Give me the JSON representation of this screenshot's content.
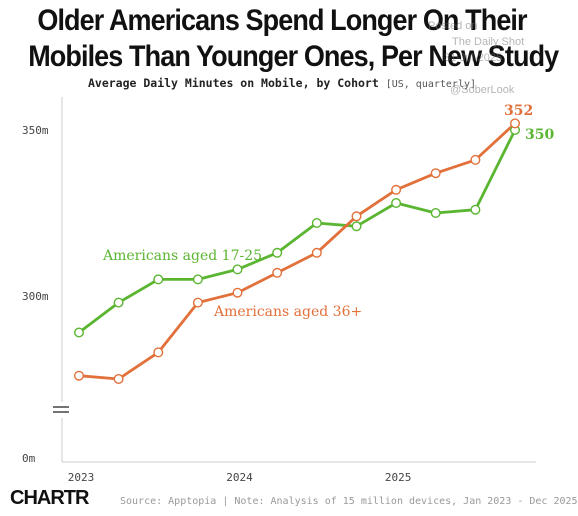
{
  "title_line1": "Older Americans Spend Longer On Their",
  "title_line2": "Mobiles Than Younger Ones, Per New Study",
  "subtitle_main": "Average Daily Minutes on Mobile, by Cohort",
  "subtitle_tag": "[US, quarterly]",
  "watermarks": {
    "posted_on": "Posted on",
    "publisher": "The Daily Shot",
    "date": "31-Jul-2025",
    "handle": "@SoberLook"
  },
  "logo": "CHARTR",
  "source": "Source: Apptopia | Note: Analysis of 15 million devices, Jan 2023 - Dec 2025",
  "colors": {
    "green": "#5ab531",
    "orange": "#e2703a",
    "axis": "#cccccc"
  },
  "chart_data": {
    "type": "line",
    "x": [
      "2023-Q1",
      "2023-Q2",
      "2023-Q3",
      "2023-Q4",
      "2024-Q1",
      "2024-Q2",
      "2024-Q3",
      "2024-Q4",
      "2025-Q1",
      "2025-Q2",
      "2025-Q3",
      "2025-Q4"
    ],
    "x_tick_labels": [
      "2023",
      "2024",
      "2025"
    ],
    "y_tick_labels": [
      "350m",
      "300m",
      "0m"
    ],
    "y_ticks": [
      350,
      300,
      0
    ],
    "axis_break": true,
    "series": [
      {
        "name": "Americans aged 17-25",
        "color": "#5ab531",
        "values": [
          289,
          298,
          305,
          305,
          308,
          313,
          322,
          321,
          328,
          325,
          326,
          350
        ],
        "end_label": "350"
      },
      {
        "name": "Americans aged 36+",
        "color": "#e2703a",
        "values": [
          276,
          275,
          283,
          298,
          301,
          307,
          313,
          324,
          332,
          337,
          341,
          352
        ],
        "end_label": "352"
      }
    ]
  }
}
